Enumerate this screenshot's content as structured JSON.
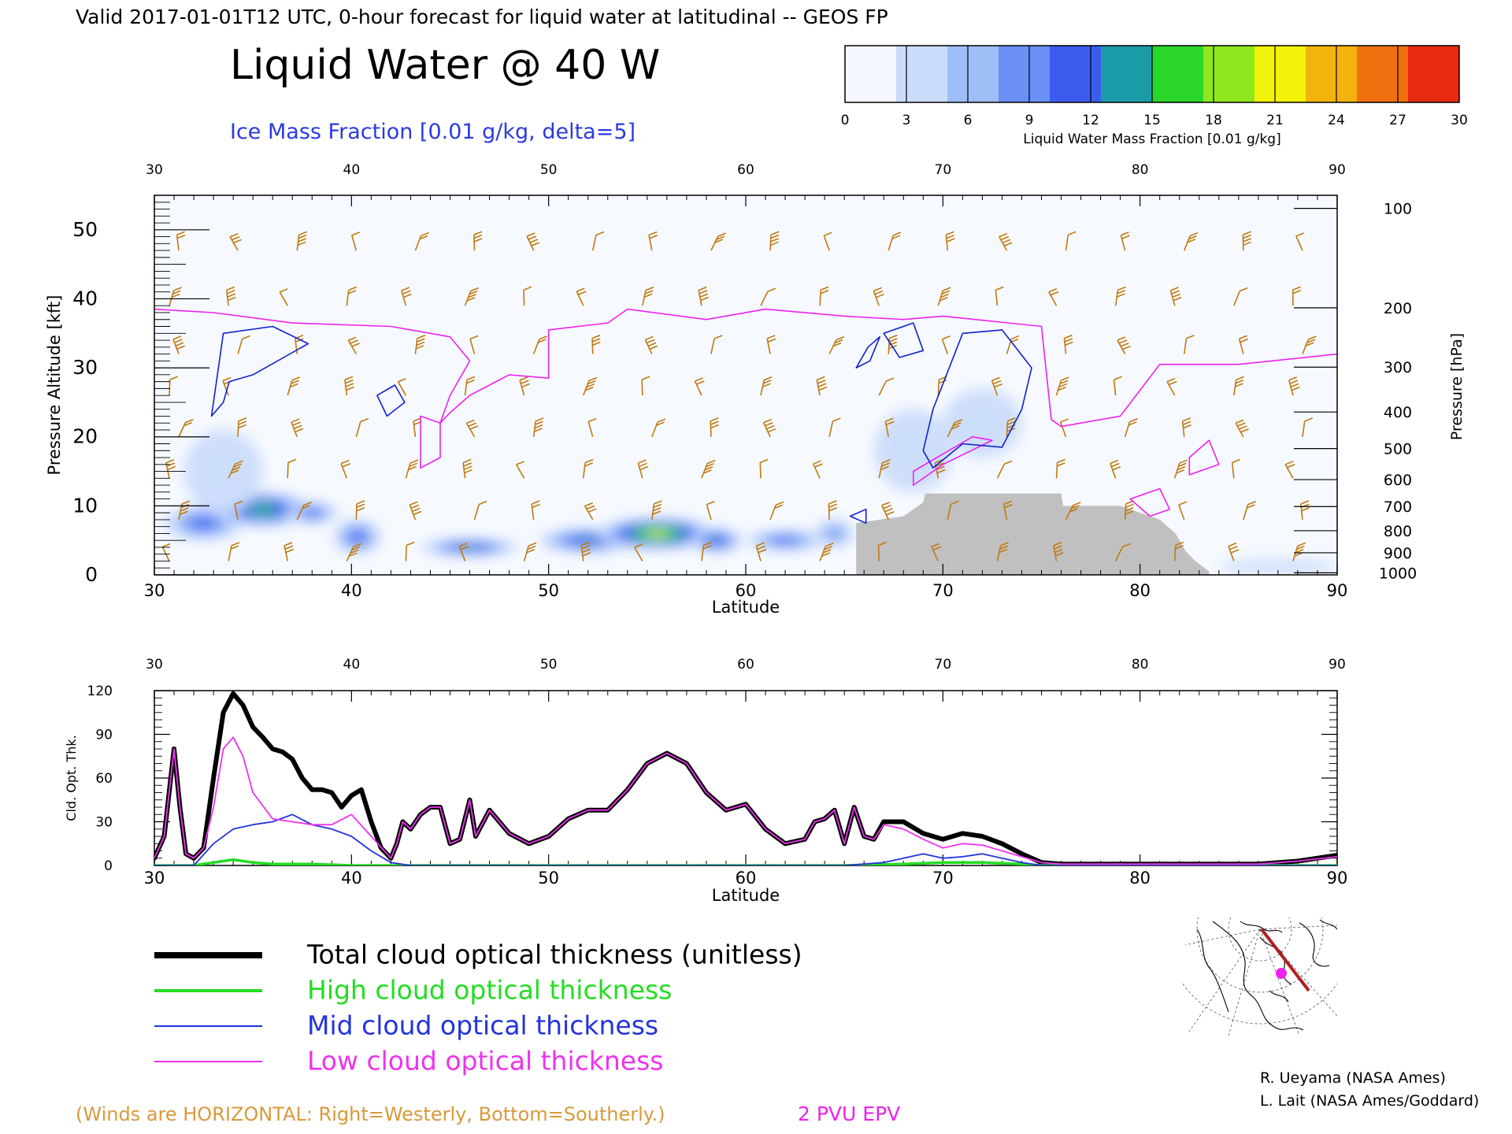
{
  "header": {
    "valid_line": "Valid 2017-01-01T12 UTC, 0-hour forecast for liquid water at latitudinal -- GEOS FP",
    "title": "Liquid Water @ 40 W",
    "subtitle": "Ice Mass Fraction [0.01 g/kg, delta=5]"
  },
  "colorbar": {
    "ticks": [
      "0",
      "3",
      "6",
      "9",
      "12",
      "15",
      "18",
      "21",
      "24",
      "27",
      "30"
    ],
    "label": "Liquid Water Mass Fraction [0.01 g/kg]",
    "colors": [
      "#f4f7ff",
      "#cbdcfb",
      "#9ebef8",
      "#6a8ff5",
      "#3c5cf0",
      "#1a9ca8",
      "#2ad62a",
      "#8fe81e",
      "#f2f20a",
      "#f4b20c",
      "#f07010",
      "#e82a10"
    ]
  },
  "legend": [
    {
      "label": "Total cloud optical thickness (unitless)",
      "color": "#000000"
    },
    {
      "label": "High cloud optical thickness",
      "color": "#22dd22"
    },
    {
      "label": "Mid cloud optical thickness",
      "color": "#2233dd"
    },
    {
      "label": "Low cloud optical thickness",
      "color": "#ee33ee"
    }
  ],
  "notes": {
    "winds": "(Winds are HORIZONTAL: Right=Westerly, Bottom=Southerly.)",
    "epv": "2 PVU EPV",
    "credit1": "R. Ueyama (NASA Ames)",
    "credit2": "L. Lait (NASA Ames/Goddard)"
  },
  "colors": {
    "epv": "#ee22ee",
    "ice_contour": "#1122cc",
    "wind_barb": "#c07a10",
    "terrain": "#c0c0c0",
    "map_track": "#b02020",
    "map_point": "#ee22ee"
  },
  "chart_data": [
    {
      "type": "heatmap",
      "xlabel": "Latitude",
      "ylabel": "Pressure Altitude [kft]",
      "ylabel_right": "Pressure [hPa]",
      "xlim": [
        30,
        90
      ],
      "ylim": [
        0,
        55
      ],
      "x_ticks": [
        "30",
        "40",
        "50",
        "60",
        "70",
        "80",
        "90"
      ],
      "y_ticks": [
        "0",
        "10",
        "20",
        "30",
        "40",
        "50"
      ],
      "right_ticks": [
        "100",
        "200",
        "300",
        "400",
        "500",
        "600",
        "700",
        "800",
        "900",
        "1000"
      ],
      "right_tick_alt": [
        53.1,
        38.7,
        30.1,
        23.6,
        18.3,
        13.8,
        9.9,
        6.4,
        3.2,
        0.3
      ],
      "liquid_blobs": [
        {
          "lat": 32.5,
          "alt": 7.5,
          "rx": 2.0,
          "ry": 2.5,
          "v": 14
        },
        {
          "lat": 35.5,
          "alt": 9.5,
          "rx": 2.5,
          "ry": 2.5,
          "v": 18
        },
        {
          "lat": 38.0,
          "alt": 9.0,
          "rx": 1.3,
          "ry": 1.6,
          "v": 13
        },
        {
          "lat": 40.3,
          "alt": 5.5,
          "rx": 1.2,
          "ry": 2.5,
          "v": 14
        },
        {
          "lat": 46.0,
          "alt": 4.0,
          "rx": 2.5,
          "ry": 1.3,
          "v": 15
        },
        {
          "lat": 52.0,
          "alt": 5.0,
          "rx": 2.5,
          "ry": 1.8,
          "v": 17
        },
        {
          "lat": 55.5,
          "alt": 6.0,
          "rx": 3.0,
          "ry": 2.3,
          "v": 24
        },
        {
          "lat": 58.5,
          "alt": 5.0,
          "rx": 1.3,
          "ry": 1.8,
          "v": 17
        },
        {
          "lat": 62.0,
          "alt": 5.0,
          "rx": 2.0,
          "ry": 1.5,
          "v": 12
        },
        {
          "lat": 64.5,
          "alt": 6.0,
          "rx": 1.0,
          "ry": 2.0,
          "v": 10
        },
        {
          "lat": 33.5,
          "alt": 15.0,
          "rx": 2.0,
          "ry": 6.0,
          "v": 4
        },
        {
          "lat": 68.5,
          "alt": 18.0,
          "rx": 2.0,
          "ry": 6.0,
          "v": 3
        },
        {
          "lat": 72.0,
          "alt": 22.0,
          "rx": 2.0,
          "ry": 5.0,
          "v": 3
        },
        {
          "lat": 87.0,
          "alt": 1.2,
          "rx": 3.0,
          "ry": 1.0,
          "v": 3
        }
      ],
      "terrain": [
        [
          65.6,
          0
        ],
        [
          65.6,
          7.5
        ],
        [
          68.0,
          8.5
        ],
        [
          69.0,
          10.5
        ],
        [
          69.1,
          11.8
        ],
        [
          76.0,
          11.8
        ],
        [
          76.1,
          10.0
        ],
        [
          79.0,
          10.0
        ],
        [
          80.0,
          9.0
        ],
        [
          81.0,
          8.0
        ],
        [
          81.8,
          6.0
        ],
        [
          82.3,
          3.5
        ],
        [
          82.8,
          2.0
        ],
        [
          83.5,
          0.5
        ],
        [
          83.5,
          0
        ]
      ],
      "epv_line": [
        [
          30,
          38.5
        ],
        [
          33,
          38
        ],
        [
          37,
          36.5
        ],
        [
          42,
          36
        ],
        [
          45,
          34.5
        ],
        [
          46,
          31
        ],
        [
          45,
          26
        ],
        [
          44.5,
          22
        ],
        [
          45,
          23.5
        ],
        [
          46,
          26
        ],
        [
          48,
          29
        ],
        [
          50,
          28.5
        ],
        [
          50,
          35.5
        ],
        [
          53,
          36.5
        ],
        [
          54,
          38.5
        ],
        [
          58,
          37
        ],
        [
          61,
          38.5
        ],
        [
          65,
          37.5
        ],
        [
          68,
          37
        ],
        [
          70,
          37.5
        ],
        [
          75,
          36
        ],
        [
          75.5,
          22.5
        ],
        [
          76,
          21.5
        ],
        [
          79,
          23
        ],
        [
          81,
          30.5
        ],
        [
          85,
          30.5
        ],
        [
          90,
          32
        ]
      ],
      "epv_closed": [
        [
          [
            43.5,
            23
          ],
          [
            44.5,
            22
          ],
          [
            44.5,
            17
          ],
          [
            43.5,
            15.5
          ],
          [
            43.5,
            19
          ],
          [
            43.5,
            23
          ]
        ],
        [
          [
            68.5,
            13
          ],
          [
            70,
            16
          ],
          [
            72.5,
            19.5
          ],
          [
            71.5,
            20
          ],
          [
            70,
            17.5
          ],
          [
            68.5,
            15
          ],
          [
            68.5,
            13
          ]
        ],
        [
          [
            82.5,
            17
          ],
          [
            83.5,
            19.5
          ],
          [
            84,
            16
          ],
          [
            82.5,
            14.5
          ],
          [
            82.5,
            17
          ]
        ],
        [
          [
            79.5,
            11
          ],
          [
            81,
            12.5
          ],
          [
            81.5,
            9.5
          ],
          [
            80.5,
            8.5
          ],
          [
            79.5,
            11
          ]
        ]
      ],
      "ice_contours": [
        [
          [
            32.9,
            23
          ],
          [
            33.5,
            35
          ],
          [
            36,
            36
          ],
          [
            37.8,
            33.5
          ],
          [
            35,
            29
          ],
          [
            33.8,
            28
          ],
          [
            33.5,
            25
          ],
          [
            32.9,
            23
          ]
        ],
        [
          [
            41.8,
            23
          ],
          [
            42.7,
            25
          ],
          [
            42.2,
            27.5
          ],
          [
            41.3,
            26
          ],
          [
            41.8,
            23
          ]
        ],
        [
          [
            65.6,
            30
          ],
          [
            66.2,
            33
          ],
          [
            66.8,
            34.5
          ],
          [
            66.3,
            31
          ],
          [
            65.6,
            30
          ]
        ],
        [
          [
            67,
            35
          ],
          [
            68.5,
            36.5
          ],
          [
            69,
            32.5
          ],
          [
            67.8,
            31.5
          ],
          [
            67,
            35
          ]
        ],
        [
          [
            69.5,
            24
          ],
          [
            71,
            35
          ],
          [
            73,
            35.5
          ],
          [
            74.5,
            30
          ],
          [
            74,
            24
          ],
          [
            73,
            18.5
          ],
          [
            71,
            19
          ],
          [
            69.5,
            15.5
          ],
          [
            69,
            18
          ],
          [
            69.5,
            24
          ]
        ],
        [
          [
            65.3,
            8.5
          ],
          [
            66.1,
            9.5
          ],
          [
            66.1,
            7.5
          ],
          [
            65.3,
            8.5
          ]
        ]
      ],
      "wind_columns": [
        31,
        34,
        37,
        40,
        43,
        46,
        49,
        52,
        55,
        58,
        61,
        64,
        67,
        70,
        73,
        76,
        79,
        82,
        85,
        88
      ],
      "wind_levels": [
        55,
        47,
        39,
        32,
        26,
        20,
        14,
        8,
        2
      ]
    },
    {
      "type": "line",
      "xlabel": "Latitude",
      "ylabel": "Cld. Opt. Thk.",
      "xlim": [
        30,
        90
      ],
      "ylim": [
        0,
        120
      ],
      "x_ticks": [
        "30",
        "40",
        "50",
        "60",
        "70",
        "80",
        "90"
      ],
      "y_ticks": [
        "0",
        "30",
        "60",
        "90",
        "120"
      ],
      "series": [
        {
          "name": "Total cloud optical thickness (unitless)",
          "x": [
            30,
            30.5,
            31,
            31.3,
            31.6,
            32,
            32.5,
            33,
            33.5,
            34,
            34.5,
            35,
            35.5,
            36,
            36.5,
            37,
            37.5,
            38,
            38.5,
            39,
            39.5,
            40,
            40.5,
            41,
            41.5,
            42,
            42.3,
            42.6,
            43,
            43.5,
            44,
            44.5,
            45,
            45.5,
            46,
            46.3,
            47,
            48,
            49,
            50,
            51,
            52,
            53,
            54,
            55,
            56,
            57,
            58,
            59,
            60,
            61,
            62,
            63,
            63.5,
            64,
            64.5,
            65,
            65.5,
            66,
            66.5,
            67,
            68,
            69,
            70,
            71,
            72,
            73,
            74,
            75,
            76,
            78,
            80,
            82,
            84,
            86,
            88,
            90
          ],
          "values": [
            5,
            20,
            80,
            40,
            8,
            5,
            12,
            60,
            105,
            118,
            110,
            95,
            88,
            80,
            78,
            73,
            60,
            52,
            52,
            50,
            40,
            48,
            52,
            30,
            12,
            5,
            15,
            30,
            25,
            35,
            40,
            40,
            15,
            18,
            45,
            20,
            38,
            22,
            15,
            20,
            32,
            38,
            38,
            52,
            70,
            77,
            70,
            50,
            38,
            42,
            25,
            15,
            18,
            30,
            32,
            38,
            15,
            40,
            20,
            18,
            30,
            30,
            22,
            18,
            22,
            20,
            15,
            8,
            2,
            1,
            1,
            1,
            1,
            1,
            1,
            3,
            7
          ]
        },
        {
          "name": "High cloud optical thickness",
          "x": [
            30,
            32,
            33,
            34,
            35,
            36,
            38,
            40,
            45,
            50,
            60,
            65,
            68,
            70,
            72,
            74,
            75,
            80,
            90
          ],
          "values": [
            0,
            0,
            2,
            4,
            2,
            1,
            1,
            0,
            0,
            0,
            0,
            0,
            1,
            2,
            2,
            1,
            0,
            0,
            0
          ]
        },
        {
          "name": "Mid cloud optical thickness",
          "x": [
            30,
            32,
            33,
            34,
            35,
            36,
            37,
            38,
            39,
            40,
            41,
            42,
            43,
            50,
            60,
            65,
            67,
            68,
            69,
            70,
            71,
            72,
            73,
            74,
            75,
            80,
            90
          ],
          "values": [
            0,
            0,
            15,
            25,
            28,
            30,
            35,
            28,
            25,
            20,
            10,
            2,
            0,
            0,
            0,
            0,
            2,
            5,
            8,
            5,
            6,
            8,
            5,
            2,
            0,
            0,
            0
          ]
        },
        {
          "name": "Low cloud optical thickness",
          "x": [
            30,
            30.5,
            31,
            31.3,
            31.6,
            32,
            32.5,
            33,
            33.5,
            34,
            34.5,
            35,
            36,
            37,
            38,
            39,
            40,
            41,
            42,
            42.3,
            42.6,
            43,
            43.5,
            44,
            44.5,
            45,
            45.5,
            46,
            46.3,
            47,
            48,
            49,
            50,
            51,
            52,
            53,
            54,
            55,
            56,
            57,
            58,
            59,
            60,
            61,
            62,
            63,
            63.5,
            64,
            64.5,
            65,
            65.5,
            66,
            66.5,
            67,
            68,
            69,
            70,
            71,
            72,
            73,
            74,
            75,
            76,
            78,
            80,
            82,
            84,
            86,
            88,
            90
          ],
          "values": [
            5,
            20,
            80,
            40,
            8,
            5,
            12,
            40,
            80,
            88,
            75,
            50,
            32,
            30,
            28,
            28,
            35,
            20,
            5,
            15,
            30,
            25,
            35,
            40,
            40,
            15,
            18,
            45,
            20,
            38,
            22,
            15,
            20,
            32,
            38,
            38,
            52,
            70,
            77,
            70,
            50,
            38,
            42,
            25,
            15,
            18,
            30,
            32,
            38,
            15,
            40,
            20,
            18,
            28,
            25,
            18,
            12,
            15,
            14,
            10,
            6,
            2,
            1,
            1,
            1,
            1,
            1,
            1,
            3,
            6
          ]
        }
      ]
    }
  ]
}
